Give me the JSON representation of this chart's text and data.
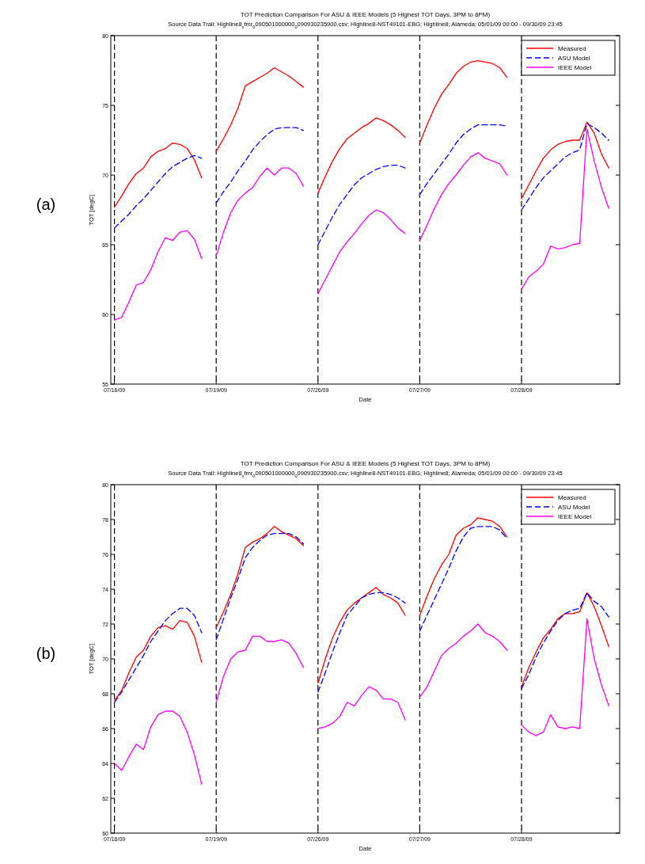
{
  "chart_data": [
    {
      "type": "line",
      "title": "TOT Prediction Comparison For ASU & IEEE Models (5 Highest TOT Days, 3PM to 8PM)",
      "subtitle": "Source Data Trail: Highline8$_{x}$fmr$_{0}$090501000000$_{0}$090930235900.csv; Highline8-NST49101-EBG; Highline8; Alameda; 05/01/09 00:00 - 09/30/09 23:45",
      "xlabel": "Date",
      "ylabel": "TOT [degC]",
      "annotations": [
        "(a)"
      ],
      "categories": [
        "07/16/09",
        null,
        null,
        null,
        null,
        null,
        null,
        null,
        null,
        null,
        null,
        null,
        null,
        null,
        "07/19/09",
        null,
        null,
        null,
        null,
        null,
        null,
        null,
        null,
        null,
        null,
        null,
        null,
        null,
        "07/26/09",
        null,
        null,
        null,
        null,
        null,
        null,
        null,
        null,
        null,
        null,
        null,
        null,
        null,
        "07/27/09",
        null,
        null,
        null,
        null,
        null,
        null,
        null,
        null,
        null,
        null,
        null,
        null,
        null,
        "07/28/09",
        null,
        null,
        null,
        null,
        null,
        null,
        null,
        null,
        null,
        null,
        null,
        null,
        null
      ],
      "ylim": [
        55,
        80
      ],
      "yticks": [
        55,
        60,
        65,
        70,
        75,
        80
      ],
      "grid": false,
      "legend": "top right",
      "ref_lines": [
        {
          "axis": "x",
          "value": "07/16/09",
          "color": "#000000",
          "line_style": "dashed"
        },
        {
          "axis": "x",
          "value": "07/19/09",
          "color": "#000000",
          "line_style": "dashed"
        },
        {
          "axis": "x",
          "value": "07/26/09",
          "color": "#000000",
          "line_style": "dashed"
        },
        {
          "axis": "x",
          "value": "07/27/09",
          "color": "#000000",
          "line_style": "dashed"
        },
        {
          "axis": "x",
          "value": "07/28/09",
          "color": "#000000",
          "line_style": "dashed"
        }
      ],
      "series": [
        {
          "name": "Measured",
          "color": "#ff0000",
          "line_style": "solid",
          "values": [
            67.7,
            68.5,
            69.4,
            70.1,
            70.5,
            71.3,
            71.7,
            71.9,
            72.3,
            72.2,
            71.9,
            71.1,
            69.8,
            null,
            71.7,
            72.6,
            73.6,
            74.8,
            76.4,
            76.7,
            77.0,
            77.3,
            77.7,
            77.4,
            77.1,
            76.7,
            76.3,
            null,
            68.7,
            69.9,
            71.0,
            71.9,
            72.6,
            73.0,
            73.4,
            73.7,
            74.1,
            73.9,
            73.6,
            73.2,
            72.7,
            null,
            72.3,
            73.6,
            74.8,
            75.8,
            76.5,
            77.3,
            77.8,
            78.1,
            78.2,
            78.1,
            78.0,
            77.7,
            77.0,
            null,
            68.3,
            69.3,
            70.3,
            71.2,
            71.8,
            72.2,
            72.4,
            72.5,
            72.5,
            73.8,
            73.0,
            71.5,
            70.5,
            null
          ]
        },
        {
          "name": "ASU Model",
          "color": "#0000ff",
          "line_style": "dashed",
          "values": [
            66.2,
            66.7,
            67.2,
            67.8,
            68.3,
            68.9,
            69.5,
            70.1,
            70.6,
            70.9,
            71.2,
            71.4,
            71.2,
            null,
            68.0,
            68.8,
            69.5,
            70.3,
            71.0,
            71.8,
            72.4,
            72.9,
            73.3,
            73.4,
            73.4,
            73.4,
            73.2,
            null,
            65.0,
            66.0,
            67.0,
            67.9,
            68.6,
            69.3,
            69.8,
            70.1,
            70.4,
            70.6,
            70.7,
            70.7,
            70.5,
            null,
            68.6,
            69.4,
            70.1,
            70.8,
            71.5,
            72.3,
            72.9,
            73.3,
            73.6,
            73.6,
            73.6,
            73.6,
            73.5,
            null,
            67.5,
            68.3,
            69.1,
            69.8,
            70.3,
            70.8,
            71.3,
            71.6,
            71.8,
            73.7,
            73.4,
            73.0,
            72.5,
            null
          ]
        },
        {
          "name": "IEEE Model",
          "color": "#ff00ff",
          "line_style": "solid",
          "values": [
            59.6,
            59.8,
            60.9,
            62.1,
            62.3,
            63.2,
            64.5,
            65.5,
            65.3,
            65.9,
            66.0,
            65.4,
            64.0,
            null,
            64.2,
            65.9,
            67.3,
            68.2,
            68.7,
            69.1,
            69.9,
            70.5,
            70.0,
            70.5,
            70.5,
            70.1,
            69.2,
            null,
            61.5,
            62.5,
            63.5,
            64.5,
            65.2,
            65.8,
            66.5,
            67.1,
            67.5,
            67.3,
            66.8,
            66.2,
            65.8,
            null,
            65.3,
            66.4,
            67.6,
            68.6,
            69.4,
            70.0,
            70.7,
            71.3,
            71.6,
            71.2,
            71.0,
            70.8,
            70.0,
            null,
            61.8,
            62.7,
            63.1,
            63.6,
            64.9,
            64.7,
            64.8,
            65.0,
            65.1,
            73.3,
            71.0,
            69.1,
            67.6,
            null
          ]
        }
      ]
    },
    {
      "type": "line",
      "title": "TOT Prediction Comparison For ASU & IEEE Models (5 Highest TOT Days, 3PM to 8PM)",
      "subtitle": "Source Data Trail: Highline8$_{x}$fmr$_{0}$090501000000$_{0}$090930235900.csv; Highline8-NST49101-EBG; Highline8; Alameda; 05/01/09 00:00 - 09/30/09 23:45",
      "xlabel": "Date",
      "ylabel": "TOT [degC]",
      "annotations": [
        "(b)"
      ],
      "categories": [
        "07/16/09",
        null,
        null,
        null,
        null,
        null,
        null,
        null,
        null,
        null,
        null,
        null,
        null,
        null,
        "07/19/09",
        null,
        null,
        null,
        null,
        null,
        null,
        null,
        null,
        null,
        null,
        null,
        null,
        null,
        "07/26/09",
        null,
        null,
        null,
        null,
        null,
        null,
        null,
        null,
        null,
        null,
        null,
        null,
        null,
        "07/27/09",
        null,
        null,
        null,
        null,
        null,
        null,
        null,
        null,
        null,
        null,
        null,
        null,
        null,
        "07/28/09",
        null,
        null,
        null,
        null,
        null,
        null,
        null,
        null,
        null,
        null,
        null,
        null,
        null
      ],
      "ylim": [
        60,
        80
      ],
      "yticks": [
        60,
        62,
        64,
        66,
        68,
        70,
        72,
        74,
        76,
        78,
        80
      ],
      "grid": false,
      "legend": "top right",
      "ref_lines": [
        {
          "axis": "x",
          "value": "07/16/09",
          "color": "#000000",
          "line_style": "dashed"
        },
        {
          "axis": "x",
          "value": "07/19/09",
          "color": "#000000",
          "line_style": "dashed"
        },
        {
          "axis": "x",
          "value": "07/26/09",
          "color": "#000000",
          "line_style": "dashed"
        },
        {
          "axis": "x",
          "value": "07/27/09",
          "color": "#000000",
          "line_style": "dashed"
        },
        {
          "axis": "x",
          "value": "07/28/09",
          "color": "#000000",
          "line_style": "dashed"
        }
      ],
      "series": [
        {
          "name": "Measured",
          "color": "#ff0000",
          "line_style": "solid",
          "values": [
            67.6,
            68.2,
            69.2,
            70.1,
            70.5,
            71.3,
            71.8,
            71.9,
            71.7,
            72.2,
            72.1,
            71.3,
            69.8,
            null,
            71.8,
            72.7,
            73.7,
            74.9,
            76.4,
            76.7,
            76.9,
            77.2,
            77.6,
            77.3,
            77.1,
            76.9,
            76.5,
            null,
            68.6,
            70.0,
            71.2,
            72.1,
            72.8,
            73.2,
            73.5,
            73.8,
            74.1,
            73.7,
            73.5,
            73.2,
            72.5,
            null,
            72.5,
            73.6,
            74.6,
            75.4,
            76.0,
            77.1,
            77.5,
            77.7,
            78.1,
            78.0,
            77.9,
            77.6,
            77.0,
            null,
            68.4,
            69.5,
            70.4,
            71.2,
            71.7,
            72.3,
            72.6,
            72.6,
            72.7,
            73.8,
            73.0,
            71.9,
            70.7,
            null
          ]
        },
        {
          "name": "ASU Model",
          "color": "#0000ff",
          "line_style": "dashed",
          "values": [
            67.5,
            68.1,
            68.8,
            69.5,
            70.2,
            71.0,
            71.6,
            72.2,
            72.6,
            72.9,
            72.9,
            72.5,
            71.5,
            null,
            71.1,
            72.3,
            73.5,
            74.6,
            75.8,
            76.4,
            76.8,
            77.1,
            77.2,
            77.2,
            77.2,
            77.0,
            76.6,
            null,
            68.1,
            69.2,
            70.4,
            71.5,
            72.5,
            73.0,
            73.5,
            73.7,
            73.8,
            73.8,
            73.7,
            73.5,
            73.2,
            null,
            71.6,
            72.5,
            73.4,
            74.3,
            75.2,
            76.2,
            77.0,
            77.5,
            77.6,
            77.6,
            77.6,
            77.4,
            76.9,
            null,
            68.3,
            69.1,
            70.1,
            70.9,
            71.6,
            72.2,
            72.6,
            72.8,
            72.9,
            73.8,
            73.3,
            73.0,
            72.4,
            null
          ]
        },
        {
          "name": "IEEE Model",
          "color": "#ff00ff",
          "line_style": "solid",
          "values": [
            64.0,
            63.6,
            64.4,
            65.1,
            64.8,
            66.1,
            66.8,
            67.0,
            67.0,
            66.7,
            65.8,
            64.5,
            62.8,
            null,
            67.5,
            69.0,
            70.0,
            70.4,
            70.5,
            71.3,
            71.3,
            71.0,
            71.0,
            71.1,
            70.9,
            70.3,
            69.5,
            null,
            66.0,
            66.1,
            66.3,
            66.7,
            67.5,
            67.3,
            67.9,
            68.4,
            68.2,
            67.7,
            67.7,
            67.5,
            66.5,
            null,
            67.8,
            68.4,
            69.3,
            70.2,
            70.6,
            70.9,
            71.3,
            71.6,
            72.0,
            71.5,
            71.3,
            71.0,
            70.5,
            null,
            66.2,
            65.8,
            65.6,
            65.8,
            66.8,
            66.1,
            66.0,
            66.1,
            66.0,
            72.3,
            70.0,
            68.5,
            67.3,
            null
          ]
        }
      ]
    }
  ]
}
